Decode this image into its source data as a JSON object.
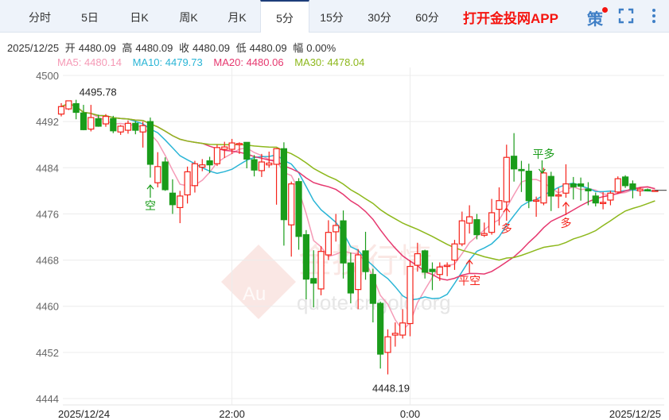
{
  "tabs": [
    {
      "label": "分时",
      "active": false
    },
    {
      "label": "5日",
      "active": false
    },
    {
      "label": "日K",
      "active": false
    },
    {
      "label": "周K",
      "active": false
    },
    {
      "label": "月K",
      "active": false
    },
    {
      "label": "5分",
      "active": true
    },
    {
      "label": "15分",
      "active": false
    },
    {
      "label": "30分",
      "active": false
    },
    {
      "label": "60分",
      "active": false
    }
  ],
  "app_link": "打开金投网APP",
  "icons": {
    "strategy": "策",
    "strategy_icon": "strategy-icon",
    "fullscreen": "fullscreen-icon",
    "more": "more-vertical-icon"
  },
  "info": {
    "date": "2025/12/25",
    "open_label": "开",
    "open": "4480.09",
    "high_label": "高",
    "high": "4480.09",
    "close_label": "收",
    "close": "4480.09",
    "low_label": "低",
    "low": "4480.09",
    "change_label": "幅",
    "change": "0.00%"
  },
  "ma": {
    "ma5": "MA5: 4480.14",
    "ma10": "MA10: 4479.73",
    "ma20": "MA20: 4480.06",
    "ma30": "MA30: 4478.04"
  },
  "colors": {
    "up": "#f5231b",
    "down": "#1a9c1a",
    "ma5": "#f59ab6",
    "ma10": "#2ab5d6",
    "ma20": "#e6386f",
    "ma30": "#8db81c"
  },
  "watermark": {
    "logo": "Au",
    "name": "金投行情",
    "site": "quote.cngold.org"
  },
  "chart_data": {
    "type": "candlestick",
    "interval": "5分",
    "ylim": [
      4444,
      4500
    ],
    "yticks": [
      "4500",
      "4492",
      "4484",
      "4476",
      "4468",
      "4460",
      "4452",
      "4444"
    ],
    "xticks": [
      {
        "label": "2025/12/24",
        "index": 0
      },
      {
        "label": "22:00",
        "index": 23
      },
      {
        "label": "0:00",
        "index": 47
      },
      {
        "label": "2025/12/25",
        "index": 80
      }
    ],
    "max_label": {
      "text": "4495.78",
      "index": 2
    },
    "min_label": {
      "text": "4448.19",
      "index": 44
    },
    "signals": [
      {
        "text": "空",
        "index": 12,
        "price": 4481,
        "dir": "up",
        "color": "down"
      },
      {
        "text": "平空",
        "index": 55,
        "price": 4468,
        "dir": "up",
        "color": "up"
      },
      {
        "text": "多",
        "index": 60,
        "price": 4477,
        "dir": "up",
        "color": "up"
      },
      {
        "text": "平多",
        "index": 65,
        "price": 4485,
        "dir": "down",
        "color": "down"
      },
      {
        "text": "多",
        "index": 68,
        "price": 4478,
        "dir": "up",
        "color": "up"
      }
    ],
    "ohlc": [
      [
        4493.3,
        4495.2,
        4492.9,
        4494.6
      ],
      [
        4494.2,
        4495.6,
        4494.0,
        4495.6
      ],
      [
        4495.1,
        4495.78,
        4492.4,
        4493.6
      ],
      [
        4493.5,
        4494.9,
        4490.5,
        4490.6
      ],
      [
        4490.7,
        4494.9,
        4490.3,
        4492.7
      ],
      [
        4492.5,
        4493.2,
        4491.1,
        4491.2
      ],
      [
        4491.6,
        4493.3,
        4491.1,
        4492.9
      ],
      [
        4492.5,
        4493.0,
        4490.0,
        4490.4
      ],
      [
        4490.2,
        4491.4,
        4489.7,
        4491.2
      ],
      [
        4490.5,
        4492.2,
        4489.9,
        4491.7
      ],
      [
        4491.7,
        4492.1,
        4489.8,
        4490.5
      ],
      [
        4490.2,
        4492.0,
        4487.5,
        4491.3
      ],
      [
        4492.0,
        4492.7,
        4482.3,
        4484.6
      ],
      [
        4481.4,
        4486.7,
        4480.6,
        4484.2
      ],
      [
        4485.0,
        4485.8,
        4480.0,
        4480.2
      ],
      [
        4479.6,
        4482.0,
        4476.0,
        4477.6
      ],
      [
        4477.1,
        4480.0,
        4474.4,
        4479.1
      ],
      [
        4479.3,
        4484.2,
        4477.8,
        4483.3
      ],
      [
        4480.9,
        4485.2,
        4479.7,
        4484.7
      ],
      [
        4484.1,
        4485.5,
        4483.4,
        4484.5
      ],
      [
        4485.2,
        4485.9,
        4483.1,
        4484.5
      ],
      [
        4484.7,
        4488.0,
        4484.3,
        4487.5
      ],
      [
        4487.2,
        4488.5,
        4485.7,
        4487.6
      ],
      [
        4487.2,
        4489.0,
        4486.4,
        4488.3
      ],
      [
        4488.0,
        4488.4,
        4486.4,
        4488.2
      ],
      [
        4488.4,
        4488.4,
        4483.9,
        4485.5
      ],
      [
        4485.4,
        4486.2,
        4482.5,
        4483.6
      ],
      [
        4483.5,
        4486.4,
        4482.4,
        4485.0
      ],
      [
        4484.5,
        4486.8,
        4484.0,
        4484.8
      ],
      [
        4484.6,
        4487.4,
        4477.6,
        4487.3
      ],
      [
        4487.3,
        4488.4,
        4470.5,
        4475.0
      ],
      [
        4474.1,
        4481.6,
        4468.6,
        4481.2
      ],
      [
        4481.6,
        4482.2,
        4469.8,
        4472.1
      ],
      [
        4472.4,
        4473.2,
        4461.2,
        4464.7
      ],
      [
        4464.8,
        4469.7,
        4459.8,
        4464.0
      ],
      [
        4463.0,
        4470.4,
        4461.9,
        4469.5
      ],
      [
        4468.9,
        4474.9,
        4468.0,
        4472.8
      ],
      [
        4472.9,
        4476.0,
        4471.2,
        4474.0
      ],
      [
        4474.8,
        4476.6,
        4464.8,
        4467.5
      ],
      [
        4467.5,
        4469.3,
        4460.5,
        4462.3
      ],
      [
        4462.9,
        4469.9,
        4459.5,
        4468.9
      ],
      [
        4469.6,
        4472.9,
        4464.6,
        4466.0
      ],
      [
        4465.5,
        4466.5,
        4457.2,
        4460.5
      ],
      [
        4460.5,
        4460.8,
        4449.2,
        4451.7
      ],
      [
        4452.0,
        4456.0,
        4448.19,
        4454.7
      ],
      [
        4455.0,
        4457.2,
        4453.0,
        4455.3
      ],
      [
        4455.0,
        4459.5,
        4454.4,
        4457.1
      ],
      [
        4457.0,
        4468.0,
        4454.8,
        4466.9
      ],
      [
        4467.1,
        4471.0,
        4466.0,
        4469.1
      ],
      [
        4469.6,
        4469.8,
        4464.8,
        4465.9
      ],
      [
        4466.4,
        4467.6,
        4462.8,
        4466.0
      ],
      [
        4465.5,
        4467.6,
        4464.4,
        4466.8
      ],
      [
        4466.9,
        4467.6,
        4465.2,
        4467.1
      ],
      [
        4468.0,
        4471.5,
        4466.3,
        4470.8
      ],
      [
        4470.8,
        4476.4,
        4470.4,
        4474.8
      ],
      [
        4474.4,
        4477.5,
        4472.6,
        4475.5
      ],
      [
        4475.0,
        4476.0,
        4471.6,
        4472.4
      ],
      [
        4472.3,
        4474.5,
        4472.0,
        4472.6
      ],
      [
        4472.8,
        4478.6,
        4472.4,
        4476.2
      ],
      [
        4476.8,
        4480.6,
        4474.0,
        4478.3
      ],
      [
        4478.1,
        4488.0,
        4476.4,
        4485.8
      ],
      [
        4486.0,
        4490.0,
        4481.6,
        4483.8
      ],
      [
        4483.7,
        4485.2,
        4479.8,
        4483.6
      ],
      [
        4483.4,
        4484.7,
        4477.0,
        4478.3
      ],
      [
        4478.2,
        4479.0,
        4475.5,
        4478.4
      ],
      [
        4477.9,
        4484.0,
        4477.5,
        4483.1
      ],
      [
        4482.5,
        4483.3,
        4476.5,
        4479.1
      ],
      [
        4479.1,
        4480.5,
        4477.0,
        4479.3
      ],
      [
        4479.6,
        4484.6,
        4478.8,
        4481.2
      ],
      [
        4481.2,
        4482.4,
        4478.5,
        4480.7
      ],
      [
        4481.2,
        4482.3,
        4478.3,
        4480.8
      ],
      [
        4480.3,
        4481.5,
        4477.5,
        4480.0
      ],
      [
        4479.1,
        4479.7,
        4477.3,
        4477.9
      ],
      [
        4477.8,
        4479.8,
        4476.8,
        4478.0
      ],
      [
        4478.4,
        4480.0,
        4477.5,
        4479.6
      ],
      [
        4479.8,
        4482.5,
        4479.5,
        4482.1
      ],
      [
        4482.4,
        4482.7,
        4480.5,
        4480.9
      ],
      [
        4481.2,
        4481.8,
        4478.7,
        4480.3
      ],
      [
        4480.0,
        4480.6,
        4479.1,
        4480.3
      ],
      [
        4480.2,
        4480.4,
        4479.9,
        4480.1
      ],
      [
        4480.09,
        4480.09,
        4480.09,
        4480.09
      ]
    ]
  }
}
